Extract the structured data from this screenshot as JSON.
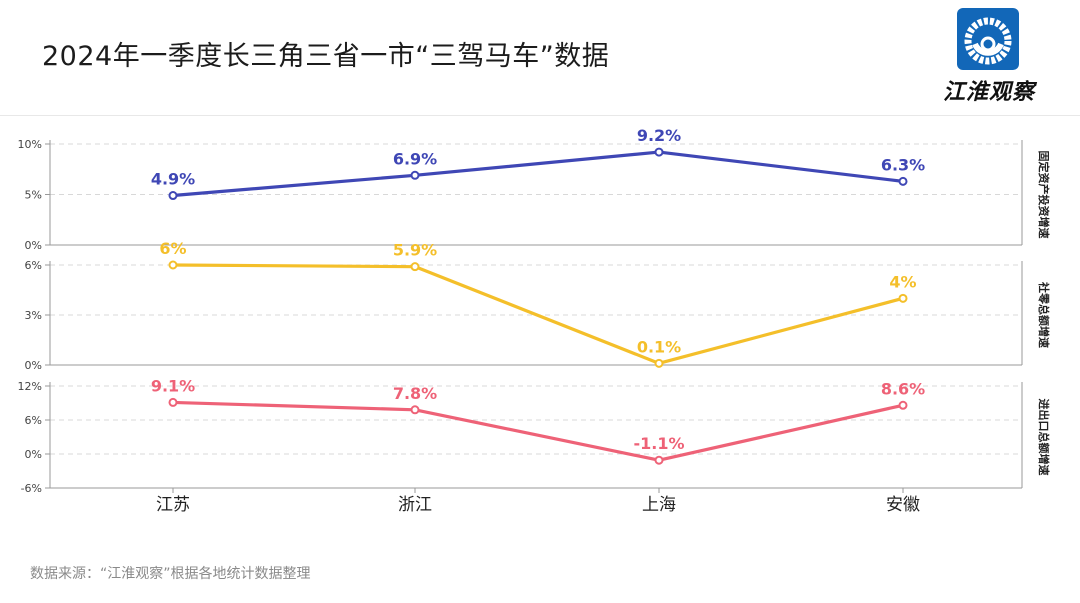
{
  "title": "2024年一季度长三角三省一市“三驾马车”数据",
  "logo": {
    "text": "江淮观察",
    "icon": "swirl-logo-icon",
    "color": "#1267b8"
  },
  "source": "数据来源：“江淮观察”根据各地统计数据整理",
  "chart_data": {
    "type": "line",
    "categories": [
      "江苏",
      "浙江",
      "上海",
      "安徽"
    ],
    "panels": [
      {
        "name": "固定资产投资增速",
        "values": [
          4.9,
          6.9,
          9.2,
          6.3
        ],
        "labels": [
          "4.9%",
          "6.9%",
          "9.2%",
          "6.3%"
        ],
        "ylim": [
          0,
          10
        ],
        "ticks": [
          0,
          5,
          10
        ],
        "tick_labels": [
          "0%",
          "5%",
          "10%"
        ],
        "color": "#3f47b5"
      },
      {
        "name": "社零总额增速",
        "values": [
          6,
          5.9,
          0.1,
          4
        ],
        "labels": [
          "6%",
          "5.9%",
          "0.1%",
          "4%"
        ],
        "ylim": [
          0,
          6
        ],
        "ticks": [
          0,
          3,
          6
        ],
        "tick_labels": [
          "0%",
          "3%",
          "6%"
        ],
        "color": "#f4bf2a"
      },
      {
        "name": "进出口总额增速",
        "values": [
          9.1,
          7.8,
          -1.1,
          8.6
        ],
        "labels": [
          "9.1%",
          "7.8%",
          "-1.1%",
          "8.6%"
        ],
        "ylim": [
          -6,
          12
        ],
        "ticks": [
          -6,
          0,
          6,
          12
        ],
        "tick_labels": [
          "-6%",
          "0%",
          "6%",
          "12%"
        ],
        "color": "#ee6277"
      }
    ]
  }
}
